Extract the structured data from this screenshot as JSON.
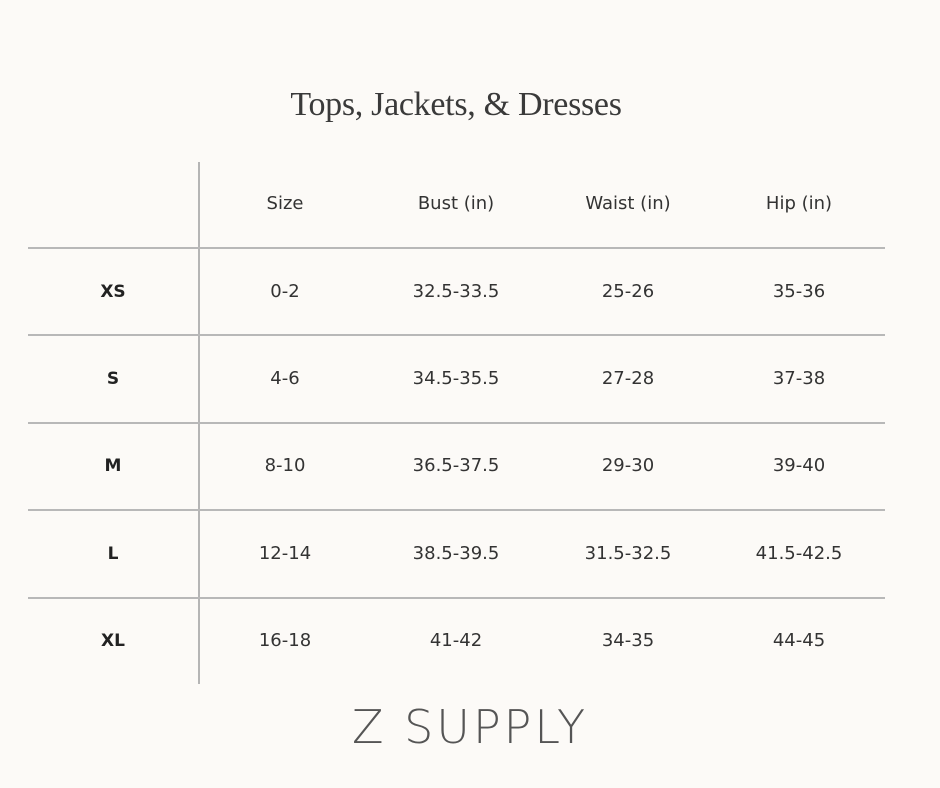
{
  "title": "Tops, Jackets, & Dresses",
  "table": {
    "headers": [
      "",
      "Size",
      "Bust (in)",
      "Waist (in)",
      "Hip (in)"
    ],
    "rows": [
      {
        "label": "XS",
        "cells": [
          "0-2",
          "32.5-33.5",
          "25-26",
          "35-36"
        ]
      },
      {
        "label": "S",
        "cells": [
          "4-6",
          "34.5-35.5",
          "27-28",
          "37-38"
        ]
      },
      {
        "label": "M",
        "cells": [
          "8-10",
          "36.5-37.5",
          "29-30",
          "39-40"
        ]
      },
      {
        "label": "L",
        "cells": [
          "12-14",
          "38.5-39.5",
          "31.5-32.5",
          "41.5-42.5"
        ]
      },
      {
        "label": "XL",
        "cells": [
          "16-18",
          "41-42",
          "34-35",
          "44-45"
        ]
      }
    ]
  },
  "logo": "Z SUPPLY",
  "colors": {
    "background": "#fcfaf7",
    "lines": "#b8b8b8",
    "text": "#333333"
  }
}
